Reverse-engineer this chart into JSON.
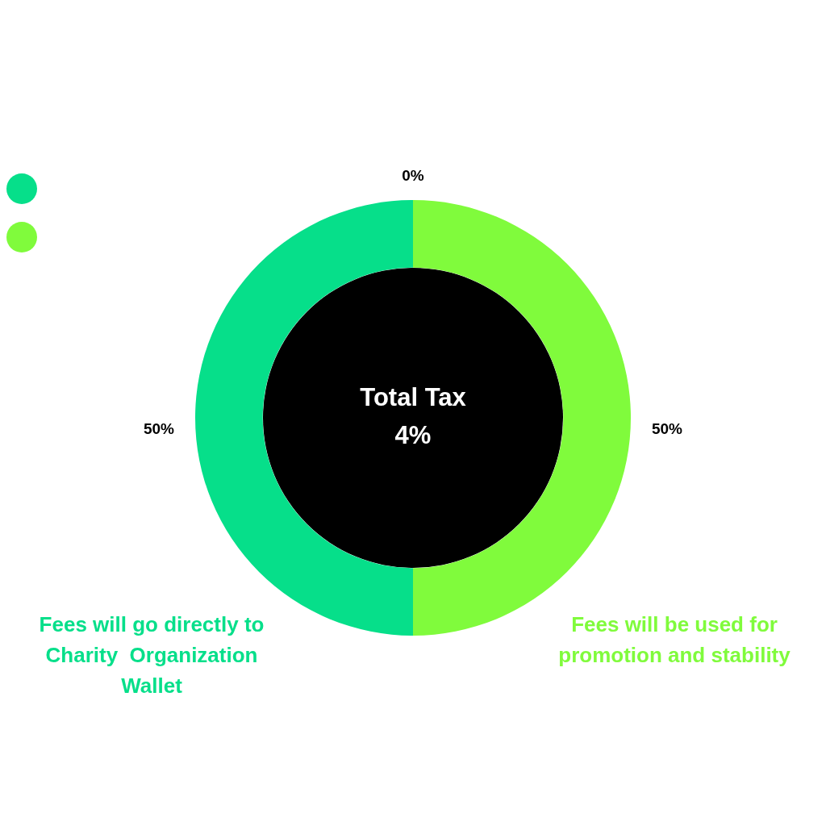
{
  "chart_data": {
    "type": "donut",
    "categories": [
      "Fees will go directly to Charity  Organization Wallet",
      "Fees will be used for promotion and stability"
    ],
    "values": [
      50,
      50
    ],
    "colors": [
      "#06df8a",
      "#80fb3c"
    ],
    "value_labels": [
      "50%",
      "50%"
    ],
    "annotations": [
      "0%",
      "Total Tax",
      "4%"
    ]
  }
}
